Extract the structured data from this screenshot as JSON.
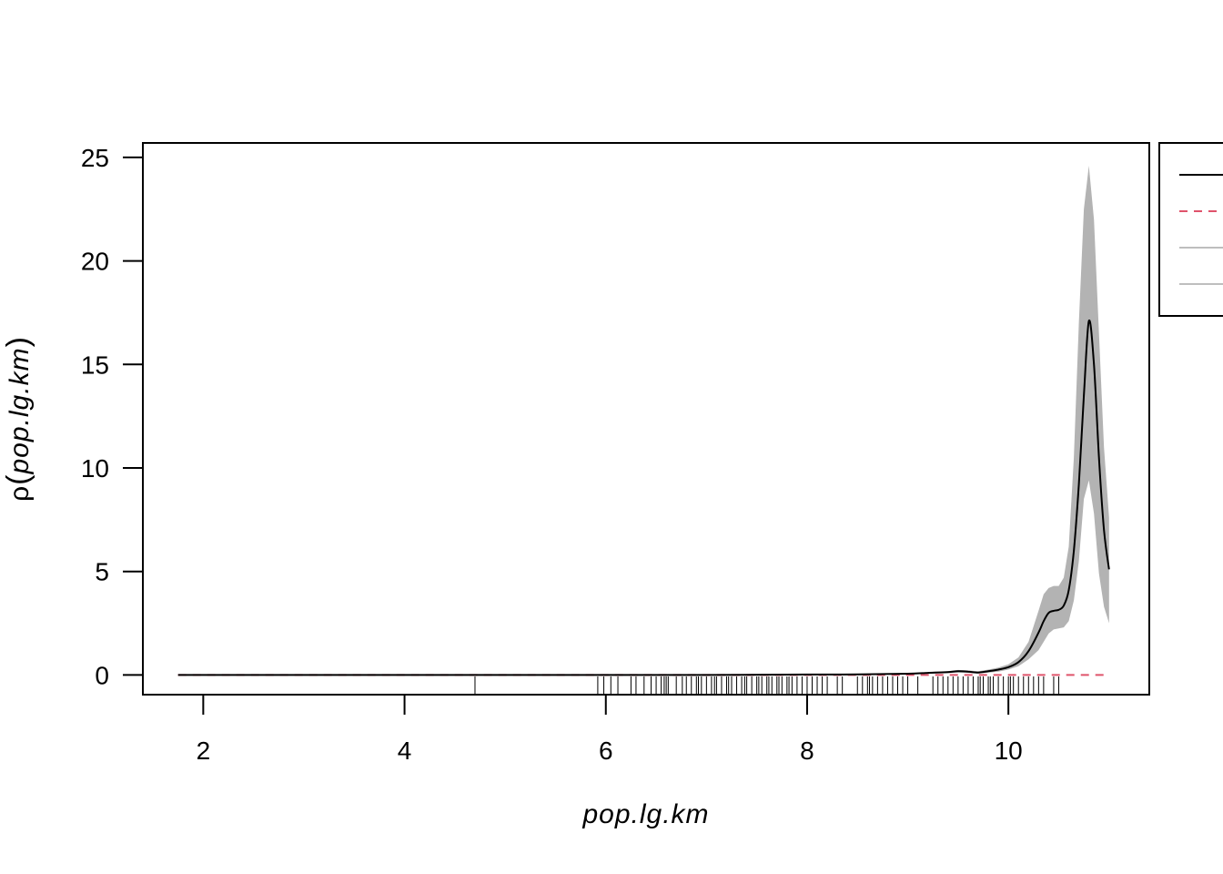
{
  "chart_data": {
    "type": "line",
    "title": "",
    "xlabel": "pop.lg.km",
    "ylabel_prefix": "ρ",
    "ylabel_inner": "pop.lg.km",
    "xlim": [
      1.4,
      11.4
    ],
    "ylim": [
      -0.95,
      25.7
    ],
    "x_ticks": [
      2,
      4,
      6,
      8,
      10
    ],
    "y_ticks": [
      0,
      5,
      10,
      15,
      20,
      25
    ],
    "grid": false,
    "legend": {
      "placement": "top-right, clipped at figure edge",
      "entries": [
        {
          "color": "#000000",
          "style": "solid"
        },
        {
          "color": "#DF536B",
          "style": "dashed"
        },
        {
          "color": "#BEBEBE",
          "style": "solid"
        },
        {
          "color": "#BEBEBE",
          "style": "solid"
        }
      ]
    },
    "colors": {
      "estimate": "#000000",
      "reference": "#DF536B",
      "band": "#B3B3B3",
      "rug": "#000000"
    },
    "series": [
      {
        "role": "estimate",
        "x": [
          1.75,
          3,
          4,
          5,
          6,
          7,
          8,
          8.5,
          9,
          9.2,
          9.4,
          9.5,
          9.6,
          9.7,
          9.8,
          9.9,
          10.0,
          10.1,
          10.2,
          10.3,
          10.35,
          10.4,
          10.45,
          10.5,
          10.55,
          10.6,
          10.65,
          10.7,
          10.75,
          10.8,
          10.85,
          10.9,
          10.95,
          11.0
        ],
        "y": [
          0,
          0,
          0,
          0,
          0,
          0,
          0.02,
          0.03,
          0.06,
          0.1,
          0.14,
          0.18,
          0.16,
          0.12,
          0.18,
          0.26,
          0.38,
          0.62,
          1.15,
          2.05,
          2.6,
          3.0,
          3.1,
          3.15,
          3.35,
          4.1,
          6.0,
          9.2,
          13.5,
          17.1,
          15.0,
          10.5,
          7.0,
          5.1
        ]
      },
      {
        "role": "reference",
        "x": [
          1.75,
          11.0
        ],
        "y": [
          0.0,
          0.0
        ]
      },
      {
        "role": "band",
        "x": [
          1.75,
          3,
          4,
          5,
          6,
          7,
          8,
          8.5,
          9,
          9.2,
          9.4,
          9.5,
          9.6,
          9.7,
          9.8,
          9.9,
          10.0,
          10.1,
          10.2,
          10.3,
          10.35,
          10.4,
          10.45,
          10.5,
          10.55,
          10.6,
          10.65,
          10.7,
          10.75,
          10.8,
          10.85,
          10.9,
          10.95,
          11.0
        ],
        "hi": [
          0,
          0,
          0,
          0,
          0,
          0,
          0.03,
          0.05,
          0.09,
          0.14,
          0.19,
          0.24,
          0.22,
          0.18,
          0.26,
          0.36,
          0.52,
          0.85,
          1.6,
          3.1,
          3.9,
          4.2,
          4.3,
          4.3,
          4.7,
          6.2,
          10.5,
          17.0,
          22.5,
          24.6,
          22.0,
          16.5,
          11.0,
          7.6
        ],
        "lo": [
          0,
          0,
          0,
          0,
          0,
          0,
          0.01,
          0.02,
          0.03,
          0.06,
          0.09,
          0.12,
          0.1,
          0.07,
          0.11,
          0.16,
          0.26,
          0.42,
          0.75,
          1.2,
          1.6,
          2.0,
          2.2,
          2.25,
          2.3,
          2.6,
          3.6,
          5.5,
          8.5,
          9.4,
          7.8,
          4.9,
          3.3,
          2.5
        ]
      }
    ],
    "rug": [
      4.7,
      5.92,
      5.98,
      6.05,
      6.12,
      6.25,
      6.3,
      6.38,
      6.45,
      6.5,
      6.55,
      6.58,
      6.6,
      6.62,
      6.7,
      6.76,
      6.8,
      6.85,
      6.9,
      6.92,
      6.95,
      7.0,
      7.05,
      7.08,
      7.1,
      7.15,
      7.2,
      7.22,
      7.25,
      7.3,
      7.35,
      7.38,
      7.4,
      7.45,
      7.5,
      7.52,
      7.55,
      7.6,
      7.62,
      7.65,
      7.7,
      7.72,
      7.75,
      7.8,
      7.82,
      7.85,
      7.9,
      7.95,
      8.0,
      8.05,
      8.1,
      8.15,
      8.2,
      8.3,
      8.35,
      8.5,
      8.55,
      8.6,
      8.62,
      8.65,
      8.7,
      8.75,
      8.8,
      8.85,
      8.9,
      8.95,
      9.0,
      9.1,
      9.25,
      9.3,
      9.35,
      9.4,
      9.45,
      9.5,
      9.55,
      9.6,
      9.65,
      9.7,
      9.72,
      9.75,
      9.8,
      9.82,
      9.85,
      9.9,
      9.95,
      10.0,
      10.02,
      10.05,
      10.1,
      10.15,
      10.2,
      10.25,
      10.3,
      10.35,
      10.45,
      10.5
    ]
  }
}
